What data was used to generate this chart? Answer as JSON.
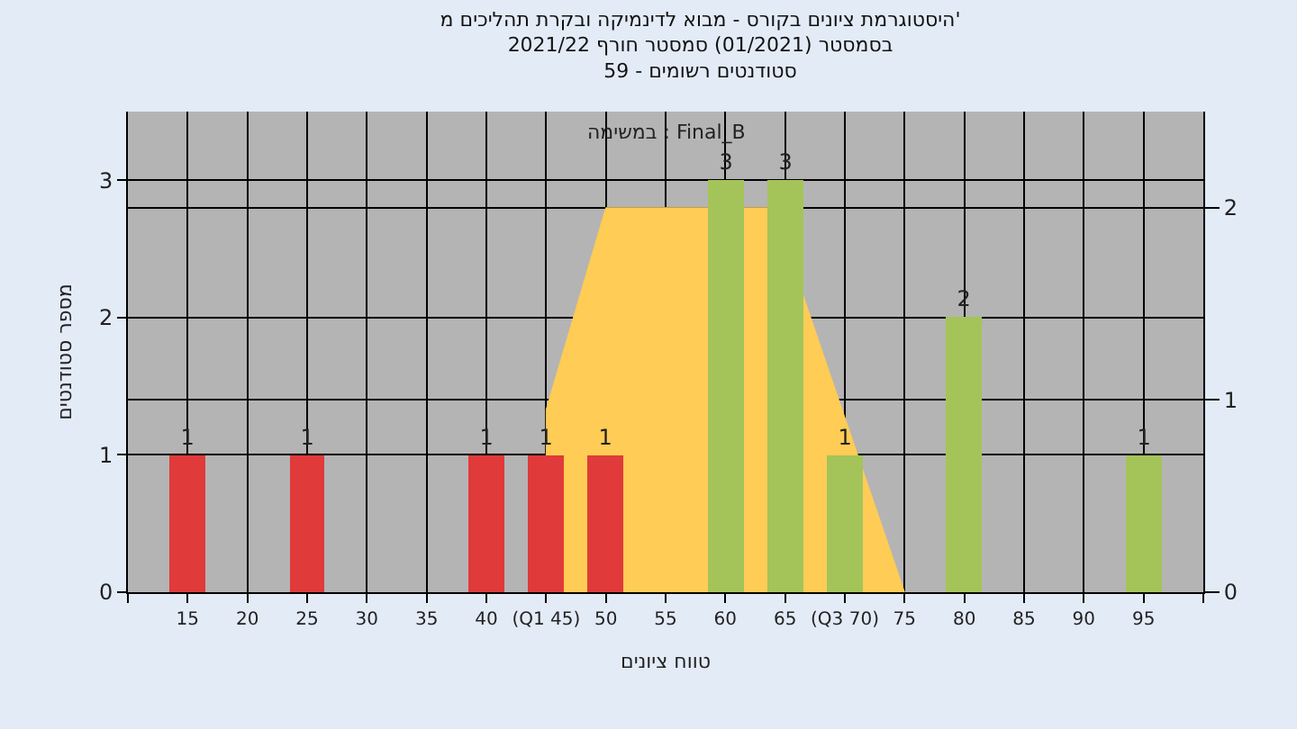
{
  "chart_data": {
    "type": "bar",
    "title": "היסטוגרמת ציונים בקורס - מבוא לדינמיקה ובקרת תהליכים מ'\nבסמסטר (01/2021) סמסטר חורף 2021/22\nסטודנטים רשומים - 59",
    "xlabel": "טווח ציונים",
    "ylabel": "מספר סטודנטים",
    "annotations": [
      "במשימה : Final_B"
    ],
    "xlim": [
      10,
      100
    ],
    "xticks": [
      {
        "value": 10,
        "label": null
      },
      15,
      20,
      25,
      30,
      35,
      40,
      {
        "value": 45,
        "label": "(Q1 45)"
      },
      50,
      55,
      60,
      65,
      {
        "value": 70,
        "label": "(Q3 70)"
      },
      75,
      80,
      85,
      90,
      95,
      {
        "value": 100,
        "label": null
      }
    ],
    "ylim": [
      0,
      3.5
    ],
    "yticks": [
      0,
      1,
      2,
      3
    ],
    "y2lim": [
      0,
      2.5
    ],
    "y2ticks": [
      0,
      1,
      2
    ],
    "grid": true,
    "series": [
      {
        "type": "area",
        "axis": "y2",
        "color": "#ffcc55",
        "x": [
          45,
          45,
          50,
          64,
          75
        ],
        "values": [
          0,
          0.95,
          2,
          2,
          0
        ]
      },
      {
        "x": [
          15,
          25,
          40,
          45,
          50,
          60,
          65,
          70,
          80,
          95
        ],
        "values": [
          1,
          1,
          1,
          1,
          1,
          3,
          3,
          1,
          2,
          1
        ],
        "value_labels": [
          "1",
          "1",
          "1",
          "1",
          "1",
          "3",
          "3",
          "1",
          "2",
          "1"
        ],
        "colors": [
          "#e03a3a",
          "#e03a3a",
          "#e03a3a",
          "#e03a3a",
          "#e03a3a",
          "#a4c45a",
          "#a4c45a",
          "#a4c45a",
          "#a4c45a",
          "#a4c45a"
        ]
      }
    ]
  }
}
